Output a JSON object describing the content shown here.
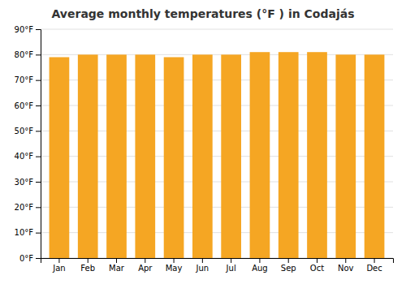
{
  "chart_data": {
    "type": "bar",
    "title": "Average monthly temperatures (°F ) in Codajás",
    "categories": [
      "Jan",
      "Feb",
      "Mar",
      "Apr",
      "May",
      "Jun",
      "Jul",
      "Aug",
      "Sep",
      "Oct",
      "Nov",
      "Dec"
    ],
    "values": [
      79,
      80,
      80,
      80,
      79,
      80,
      80,
      81,
      81,
      81,
      80,
      80
    ],
    "color": "#F5A623",
    "ylim": [
      0,
      90
    ],
    "yticks": [
      {
        "value": 0,
        "label": "0°F"
      },
      {
        "value": 10,
        "label": "10°F"
      },
      {
        "value": 20,
        "label": "20°F"
      },
      {
        "value": 30,
        "label": "30°F"
      },
      {
        "value": 40,
        "label": "40°F"
      },
      {
        "value": 50,
        "label": "50°F"
      },
      {
        "value": 60,
        "label": "60°F"
      },
      {
        "value": 70,
        "label": "70°F"
      },
      {
        "value": 80,
        "label": "80°F"
      },
      {
        "value": 90,
        "label": "90°F"
      }
    ],
    "grid": true
  }
}
